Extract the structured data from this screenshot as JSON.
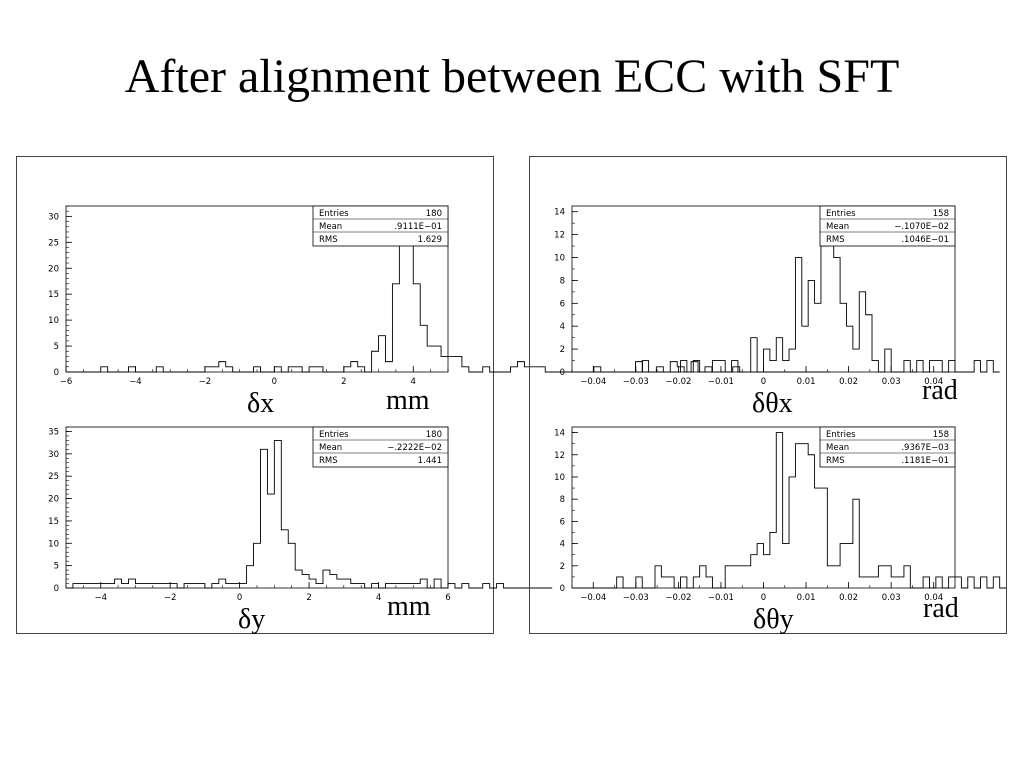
{
  "title": "After alignment between ECC with SFT",
  "chart_data": [
    {
      "type": "bar",
      "id": "dx",
      "xlabel": "δx",
      "unit": "mm",
      "xlim": [
        -6,
        5
      ],
      "ylim": [
        0,
        32
      ],
      "xticks": [
        -6,
        -4,
        -2,
        0,
        2,
        4
      ],
      "xtick_labels": [
        "−6",
        "−4",
        "−2",
        "0",
        "2",
        "4"
      ],
      "yticks": [
        0,
        5,
        10,
        15,
        20,
        25,
        30
      ],
      "yticks_minor": 1,
      "xticks_minor": 0.5,
      "stats": {
        "entries_label": "Entries",
        "entries": "180",
        "mean_label": "Mean",
        "mean": ".9111E−01",
        "rms_label": "RMS",
        "rms": "1.629"
      },
      "bins": {
        "start": -6,
        "width": 0.2,
        "values": [
          0,
          0,
          0,
          0,
          0,
          1,
          0,
          0,
          0,
          1,
          0,
          0,
          0,
          1,
          0,
          0,
          0,
          0,
          0,
          0,
          1,
          1,
          2,
          1,
          0,
          0,
          0,
          1,
          0,
          0,
          1,
          0,
          1,
          1,
          0,
          1,
          1,
          0,
          0,
          0,
          1,
          2,
          1,
          0,
          4,
          7,
          2,
          17,
          27,
          30,
          17,
          9,
          5,
          5,
          3,
          3,
          3,
          1,
          0,
          0,
          1,
          0,
          0,
          0,
          1,
          2,
          1,
          1,
          1,
          0,
          0,
          0,
          0,
          0,
          0,
          0,
          1,
          0,
          0,
          0,
          0,
          0,
          2,
          0,
          0,
          1,
          0,
          2,
          1,
          0,
          2,
          0,
          1,
          0,
          0,
          0,
          1,
          0,
          0,
          0,
          0,
          0,
          0,
          0,
          0,
          0,
          0,
          0,
          0,
          0
        ]
      }
    },
    {
      "type": "bar",
      "id": "dy",
      "xlabel": "δy",
      "unit": "mm",
      "xlim": [
        -5,
        6
      ],
      "ylim": [
        0,
        36
      ],
      "xticks": [
        -4,
        -2,
        0,
        2,
        4,
        6
      ],
      "xtick_labels": [
        "−4",
        "−2",
        "0",
        "2",
        "4",
        "6"
      ],
      "yticks": [
        0,
        5,
        10,
        15,
        20,
        25,
        30,
        35
      ],
      "yticks_minor": 1,
      "xticks_minor": 0.5,
      "stats": {
        "entries_label": "Entries",
        "entries": "180",
        "mean_label": "Mean",
        "mean": "−.2222E−02",
        "rms_label": "RMS",
        "rms": "1.441"
      },
      "bins": {
        "start": -5,
        "width": 0.2,
        "values": [
          0,
          1,
          1,
          1,
          1,
          1,
          1,
          2,
          1,
          2,
          1,
          1,
          1,
          1,
          1,
          1,
          0,
          1,
          1,
          1,
          0,
          1,
          2,
          1,
          1,
          1,
          5,
          10,
          31,
          21,
          33,
          13,
          10,
          4,
          3,
          2,
          1,
          4,
          3,
          2,
          2,
          1,
          1,
          0,
          1,
          0,
          1,
          1,
          1,
          1,
          1,
          2,
          0,
          2,
          0,
          1,
          0,
          1,
          0,
          0,
          1,
          0,
          1,
          0,
          0,
          0,
          0,
          0,
          0,
          0
        ]
      }
    },
    {
      "type": "bar",
      "id": "dthx",
      "xlabel": "δθx",
      "unit": "rad",
      "xlim": [
        -0.045,
        0.045
      ],
      "ylim": [
        0,
        14.5
      ],
      "xticks": [
        -0.04,
        -0.03,
        -0.02,
        -0.01,
        0,
        0.01,
        0.02,
        0.03,
        0.04
      ],
      "xtick_labels": [
        "−0.04",
        "−0.03",
        "−0.02",
        "−0.01",
        "0",
        "0.01",
        "0.02",
        "0.03",
        "0.04"
      ],
      "yticks": [
        0,
        2,
        4,
        6,
        8,
        10,
        12,
        14
      ],
      "yticks_minor": 1,
      "xticks_minor": 0.005,
      "stats": {
        "entries_label": "Entries",
        "entries": "158",
        "mean_label": "Mean",
        "mean": "−.1070E−02",
        "rms_label": "RMS",
        "rms": ".1046E−01"
      },
      "bins": {
        "start": -0.045,
        "width": 0.0015,
        "values": [
          0,
          0,
          0,
          0,
          0,
          0,
          0,
          0,
          0,
          0,
          0,
          1,
          0,
          0,
          0,
          0,
          0,
          1,
          0,
          1,
          0,
          0,
          1,
          1,
          0,
          1,
          0,
          0,
          3,
          0,
          2,
          1,
          3,
          1,
          2,
          10,
          4,
          8,
          6,
          11,
          13,
          10,
          6,
          4,
          2,
          7,
          5,
          1,
          0,
          2,
          0,
          0,
          1,
          0,
          1,
          0,
          1,
          1,
          0,
          1,
          0,
          0,
          0,
          1,
          0,
          1,
          0
        ]
      }
    },
    {
      "type": "bar",
      "id": "dthy",
      "xlabel": "δθy",
      "unit": "rad",
      "xlim": [
        -0.045,
        0.045
      ],
      "ylim": [
        0,
        14.5
      ],
      "xticks": [
        -0.04,
        -0.03,
        -0.02,
        -0.01,
        0,
        0.01,
        0.02,
        0.03,
        0.04
      ],
      "xtick_labels": [
        "−0.04",
        "−0.03",
        "−0.02",
        "−0.01",
        "0",
        "0.01",
        "0.02",
        "0.03",
        "0.04"
      ],
      "yticks": [
        0,
        2,
        4,
        6,
        8,
        10,
        12,
        14
      ],
      "yticks_minor": 1,
      "xticks_minor": 0.005,
      "stats": {
        "entries_label": "Entries",
        "entries": "158",
        "mean_label": "Mean",
        "mean": ".9367E−03",
        "rms_label": "RMS",
        "rms": ".1181E−01"
      },
      "bins": {
        "start": -0.045,
        "width": 0.0015,
        "values": [
          0,
          0,
          0,
          0,
          0,
          0,
          0,
          1,
          0,
          0,
          1,
          0,
          0,
          2,
          1,
          1,
          0,
          1,
          0,
          1,
          2,
          1,
          0,
          0,
          2,
          2,
          2,
          2,
          3,
          4,
          3,
          5,
          14,
          4,
          10,
          13,
          13,
          12,
          9,
          9,
          2,
          2,
          4,
          4,
          8,
          1,
          1,
          1,
          2,
          2,
          1,
          1,
          2,
          0,
          0,
          1,
          0,
          1,
          0,
          1,
          1,
          0,
          1,
          0,
          1,
          0,
          1,
          0
        ]
      }
    }
  ]
}
